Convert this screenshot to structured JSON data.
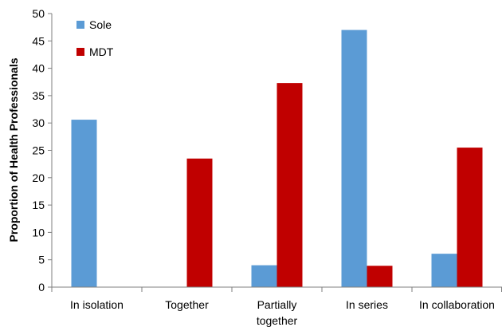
{
  "chart_data": {
    "type": "bar",
    "title": "",
    "xlabel": "",
    "ylabel": "Proportion of Health Professionals",
    "ylim": [
      0,
      50
    ],
    "yticks": [
      0,
      5,
      10,
      15,
      20,
      25,
      30,
      35,
      40,
      45,
      50
    ],
    "grid": false,
    "legend_position": "top-left",
    "categories": [
      [
        "In isolation"
      ],
      [
        "Together"
      ],
      [
        "Partially",
        "together"
      ],
      [
        "In series"
      ],
      [
        "In collaboration"
      ]
    ],
    "series": [
      {
        "name": "Sole",
        "color": "#5b9bd5",
        "values": [
          30.6,
          0,
          4.0,
          47.0,
          6.1
        ]
      },
      {
        "name": "MDT",
        "color": "#c00000",
        "values": [
          0,
          23.5,
          37.3,
          3.9,
          25.5
        ]
      }
    ]
  }
}
